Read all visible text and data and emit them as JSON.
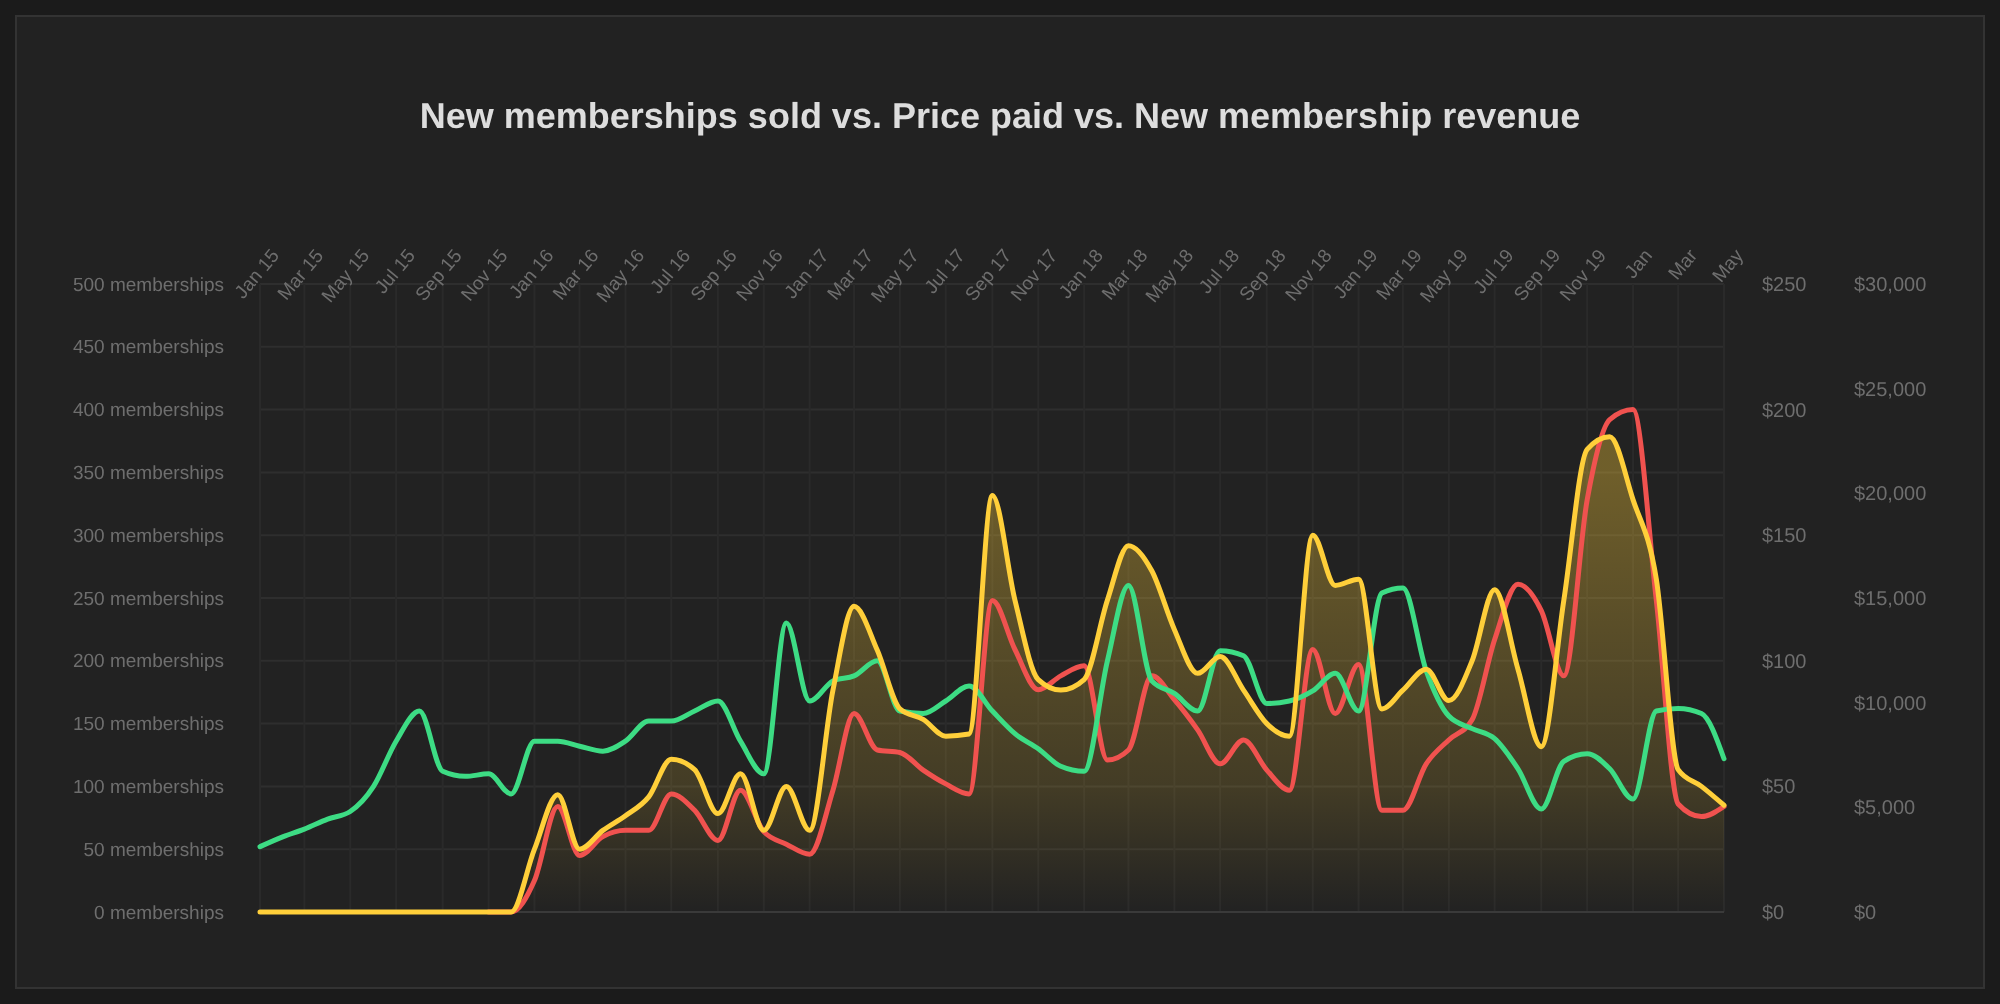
{
  "chart_data": {
    "type": "line",
    "title": "New memberships sold vs. Price paid vs. New membership revenue",
    "x": [
      "2015-01",
      "2015-02",
      "2015-03",
      "2015-04",
      "2015-05",
      "2015-06",
      "2015-07",
      "2015-08",
      "2015-09",
      "2015-10",
      "2015-11",
      "2015-12",
      "2016-01",
      "2016-02",
      "2016-03",
      "2016-04",
      "2016-05",
      "2016-06",
      "2016-07",
      "2016-08",
      "2016-09",
      "2016-10",
      "2016-11",
      "2016-12",
      "2017-01",
      "2017-02",
      "2017-03",
      "2017-04",
      "2017-05",
      "2017-06",
      "2017-07",
      "2017-08",
      "2017-09",
      "2017-10",
      "2017-11",
      "2017-12",
      "2018-01",
      "2018-02",
      "2018-03",
      "2018-04",
      "2018-05",
      "2018-06",
      "2018-07",
      "2018-08",
      "2018-09",
      "2018-10",
      "2018-11",
      "2018-12",
      "2019-01",
      "2019-02",
      "2019-03",
      "2019-04",
      "2019-05",
      "2019-06",
      "2019-07",
      "2019-08",
      "2019-09",
      "2019-10",
      "2019-11",
      "2019-12",
      "2020-01",
      "2020-02",
      "2020-03",
      "2020-04",
      "2020-05"
    ],
    "series": [
      {
        "color": "#f0524f",
        "values": [
          null,
          null,
          null,
          null,
          null,
          null,
          null,
          null,
          null,
          null,
          0,
          0,
          25,
          84,
          45,
          60,
          65,
          65,
          94,
          81,
          57,
          97,
          64,
          54,
          46,
          97,
          158,
          129,
          127,
          113,
          102,
          94,
          248,
          209,
          177,
          188,
          196,
          121,
          129,
          188,
          169,
          145,
          118,
          137,
          113,
          97,
          209,
          158,
          197,
          81,
          81,
          118,
          137,
          153,
          217,
          261,
          240,
          188,
          328,
          392,
          400,
          248,
          86,
          76,
          84
        ]
      },
      {
        "color": "#3ddc84",
        "axis": "y2",
        "values": [
          26,
          30,
          33,
          37,
          40,
          50,
          68,
          80,
          56,
          54,
          55,
          47,
          68,
          68,
          66,
          64,
          68,
          76,
          76,
          80,
          84,
          68,
          55,
          115,
          84,
          92,
          94,
          100,
          80,
          79,
          84,
          90,
          80,
          71,
          65,
          58,
          56,
          100,
          130,
          92,
          87,
          80,
          104,
          102,
          83,
          84,
          88,
          95,
          80,
          127,
          129,
          96,
          78,
          73,
          69,
          57,
          41,
          60,
          63,
          57,
          45,
          80,
          81,
          79,
          61
        ]
      },
      {
        "color": "#ffcf3a",
        "type": "area",
        "axis": "y3",
        "values": [
          0,
          0,
          0,
          0,
          0,
          0,
          0,
          0,
          0,
          0,
          0,
          0,
          3000,
          5600,
          3000,
          3900,
          4600,
          5500,
          7300,
          6800,
          4700,
          6600,
          3900,
          6000,
          3900,
          10600,
          14600,
          12500,
          9700,
          9200,
          8400,
          8500,
          19900,
          14900,
          11100,
          10600,
          11100,
          14900,
          17500,
          16300,
          13500,
          11400,
          12200,
          10600,
          9000,
          8400,
          18000,
          15600,
          15900,
          9700,
          10600,
          11600,
          10100,
          12000,
          15400,
          11600,
          7900,
          14900,
          22100,
          22700,
          19700,
          15900,
          6800,
          6000,
          5100
        ]
      }
    ],
    "xlim": [
      "2015-01",
      "2020-05"
    ],
    "xticks": [
      {
        "value": "2015-01",
        "label": "Jan 15"
      },
      {
        "value": "2015-03",
        "label": "Mar 15"
      },
      {
        "value": "2015-05",
        "label": "May 15"
      },
      {
        "value": "2015-07",
        "label": "Jul 15"
      },
      {
        "value": "2015-09",
        "label": "Sep 15"
      },
      {
        "value": "2015-11",
        "label": "Nov 15"
      },
      {
        "value": "2016-01",
        "label": "Jan 16"
      },
      {
        "value": "2016-03",
        "label": "Mar 16"
      },
      {
        "value": "2016-05",
        "label": "May 16"
      },
      {
        "value": "2016-07",
        "label": "Jul 16"
      },
      {
        "value": "2016-09",
        "label": "Sep 16"
      },
      {
        "value": "2016-11",
        "label": "Nov 16"
      },
      {
        "value": "2017-01",
        "label": "Jan 17"
      },
      {
        "value": "2017-03",
        "label": "Mar 17"
      },
      {
        "value": "2017-05",
        "label": "May 17"
      },
      {
        "value": "2017-07",
        "label": "Jul 17"
      },
      {
        "value": "2017-09",
        "label": "Sep 17"
      },
      {
        "value": "2017-11",
        "label": "Nov 17"
      },
      {
        "value": "2018-01",
        "label": "Jan 18"
      },
      {
        "value": "2018-03",
        "label": "Mar 18"
      },
      {
        "value": "2018-05",
        "label": "May 18"
      },
      {
        "value": "2018-07",
        "label": "Jul 18"
      },
      {
        "value": "2018-09",
        "label": "Sep 18"
      },
      {
        "value": "2018-11",
        "label": "Nov 18"
      },
      {
        "value": "2019-01",
        "label": "Jan 19"
      },
      {
        "value": "2019-03",
        "label": "Mar 19"
      },
      {
        "value": "2019-05",
        "label": "May 19"
      },
      {
        "value": "2019-07",
        "label": "Jul 19"
      },
      {
        "value": "2019-09",
        "label": "Sep 19"
      },
      {
        "value": "2019-11",
        "label": "Nov 19"
      },
      {
        "value": "2020-01",
        "label": "Jan"
      },
      {
        "value": "2020-03",
        "label": "Mar"
      },
      {
        "value": "2020-05",
        "label": "May"
      }
    ],
    "ylim": [
      0,
      500
    ],
    "yticks": [
      {
        "value": 0,
        "label": "0 memberships"
      },
      {
        "value": 50,
        "label": "50 memberships"
      },
      {
        "value": 100,
        "label": "100 memberships"
      },
      {
        "value": 150,
        "label": "150 memberships"
      },
      {
        "value": 200,
        "label": "200 memberships"
      },
      {
        "value": 250,
        "label": "250 memberships"
      },
      {
        "value": 300,
        "label": "300 memberships"
      },
      {
        "value": 350,
        "label": "350 memberships"
      },
      {
        "value": 400,
        "label": "400 memberships"
      },
      {
        "value": 450,
        "label": "450 memberships"
      },
      {
        "value": 500,
        "label": "500 memberships"
      }
    ],
    "y2lim": [
      0,
      250
    ],
    "y2ticks": [
      {
        "value": 0,
        "label": "$0"
      },
      {
        "value": 50,
        "label": "$50"
      },
      {
        "value": 100,
        "label": "$100"
      },
      {
        "value": 150,
        "label": "$150"
      },
      {
        "value": 200,
        "label": "$200"
      },
      {
        "value": 250,
        "label": "$250"
      }
    ],
    "y3lim": [
      0,
      30000
    ],
    "y3ticks": [
      {
        "value": 0,
        "label": "$0"
      },
      {
        "value": 5000,
        "label": "$5,000"
      },
      {
        "value": 10000,
        "label": "$10,000"
      },
      {
        "value": 15000,
        "label": "$15,000"
      },
      {
        "value": 20000,
        "label": "$20,000"
      },
      {
        "value": 25000,
        "label": "$25,000"
      },
      {
        "value": 30000,
        "label": "$30,000"
      }
    ],
    "grid": true
  }
}
